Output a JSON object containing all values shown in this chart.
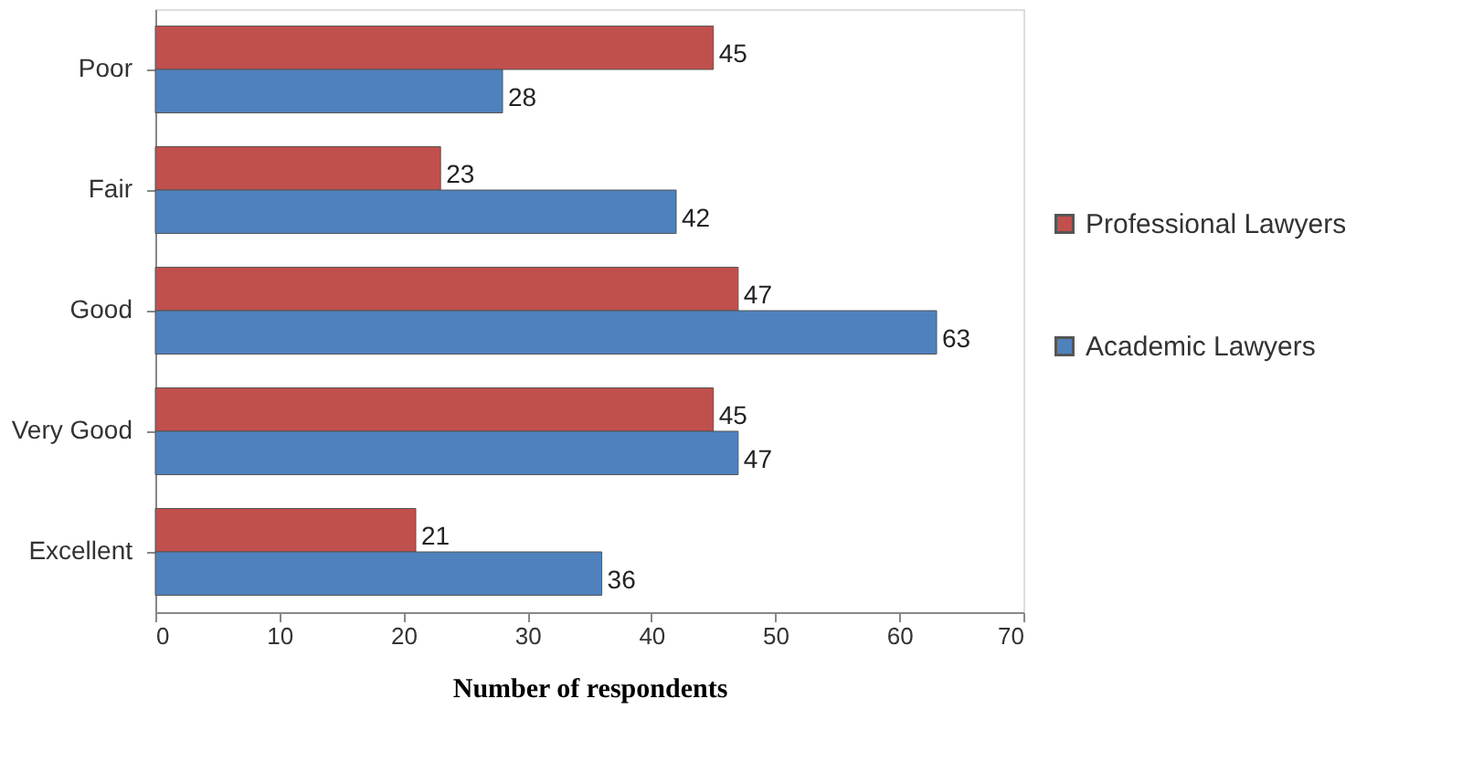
{
  "chart_data": {
    "type": "bar",
    "orientation": "horizontal",
    "categories": [
      "Poor",
      "Fair",
      "Good",
      "Very Good",
      "Excellent"
    ],
    "series": [
      {
        "name": "Professional Lawyers",
        "color": "#c0504d",
        "values": [
          45,
          23,
          47,
          45,
          21
        ]
      },
      {
        "name": "Academic Lawyers",
        "color": "#4f81bd",
        "values": [
          28,
          42,
          63,
          47,
          36
        ]
      }
    ],
    "xlabel": "Number of respondents",
    "xlim": [
      0,
      70
    ],
    "xticks": [
      0,
      10,
      20,
      30,
      40,
      50,
      60,
      70
    ],
    "data_labels": true,
    "legend": "right",
    "grid": false
  }
}
